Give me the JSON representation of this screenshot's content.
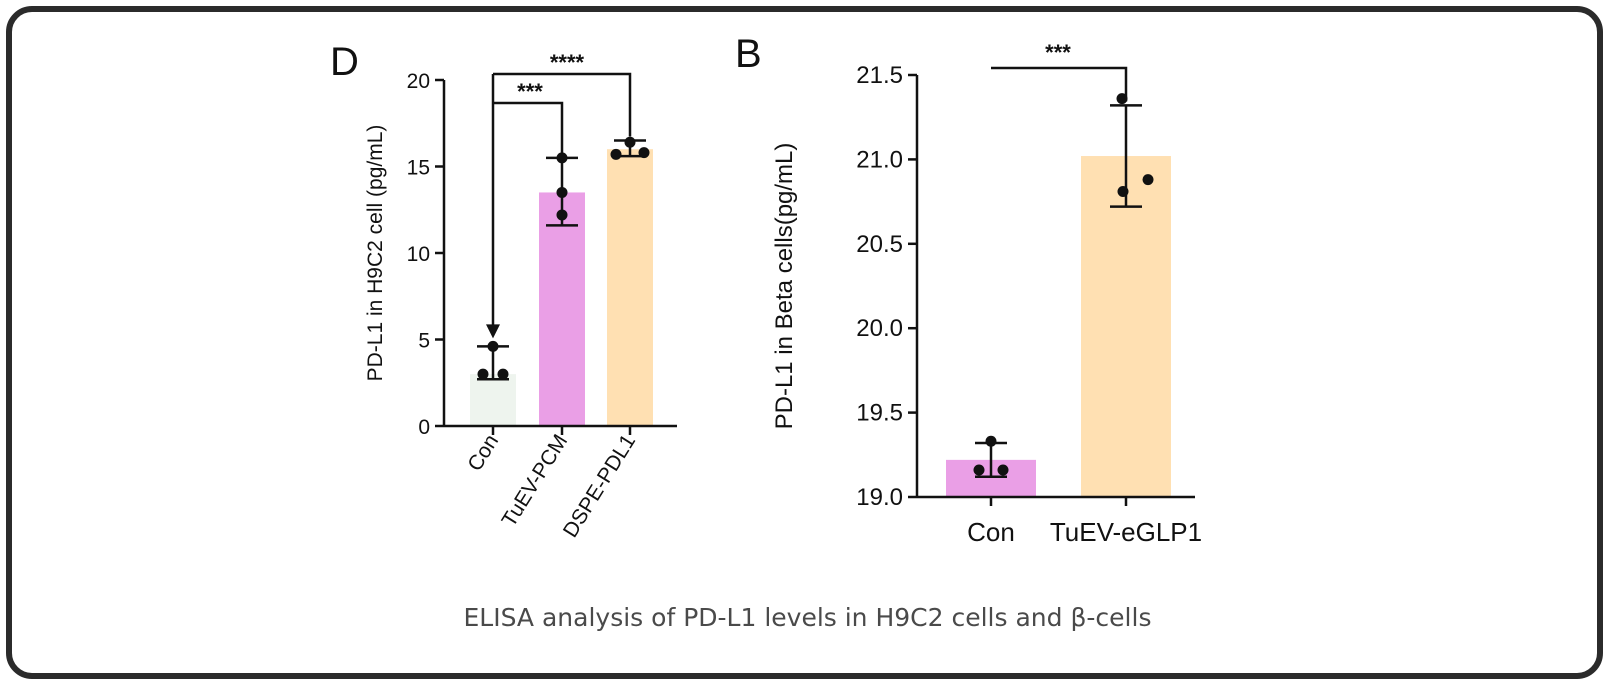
{
  "caption": "ELISA analysis of PD-L1 levels in H9C2 cells and β-cells",
  "colors": {
    "axis": "#111111",
    "con_d": "#eef4ee",
    "pink": "#ea9fe6",
    "peach": "#ffe0b2"
  },
  "chart_data": [
    {
      "panel_label": "D",
      "type": "bar",
      "ylabel": "PD-L1 in H9C2 cell (pg/mL)",
      "ylim": [
        0,
        20
      ],
      "yticks": [
        "0",
        "5",
        "10",
        "15",
        "20"
      ],
      "categories": [
        "Con",
        "TuEV-PCM",
        "DSPE-PDL1"
      ],
      "bar_colors": [
        "#eef4ee",
        "#ea9fe6",
        "#ffe0b2"
      ],
      "values": [
        3.0,
        13.5,
        16.0
      ],
      "error_low": [
        2.7,
        11.6,
        15.6
      ],
      "error_high": [
        4.6,
        15.5,
        16.5
      ],
      "points": [
        [
          4.6,
          3.0,
          3.0
        ],
        [
          15.5,
          13.5,
          12.2
        ],
        [
          16.4,
          15.7,
          15.8
        ]
      ],
      "significance": [
        {
          "from": "Con",
          "to": "TuEV-PCM",
          "label": "***"
        },
        {
          "from": "Con",
          "to": "DSPE-PDL1",
          "label": "****"
        }
      ]
    },
    {
      "panel_label": "B",
      "type": "bar",
      "ylabel": "PD-L1 in Beta cells(pg/mL)",
      "ylim": [
        19.0,
        21.5
      ],
      "yticks": [
        "19.0",
        "19.5",
        "20.0",
        "20.5",
        "21.0",
        "21.5"
      ],
      "categories": [
        "Con",
        "TuEV-eGLP1"
      ],
      "bar_colors": [
        "#ea9fe6",
        "#ffe0b2"
      ],
      "values": [
        19.22,
        21.02
      ],
      "error_low": [
        19.12,
        20.72
      ],
      "error_high": [
        19.32,
        21.32
      ],
      "points": [
        [
          19.33,
          19.16,
          19.16
        ],
        [
          21.36,
          20.81,
          20.88
        ]
      ],
      "significance": [
        {
          "from": "Con",
          "to": "TuEV-eGLP1",
          "label": "***"
        }
      ]
    }
  ]
}
